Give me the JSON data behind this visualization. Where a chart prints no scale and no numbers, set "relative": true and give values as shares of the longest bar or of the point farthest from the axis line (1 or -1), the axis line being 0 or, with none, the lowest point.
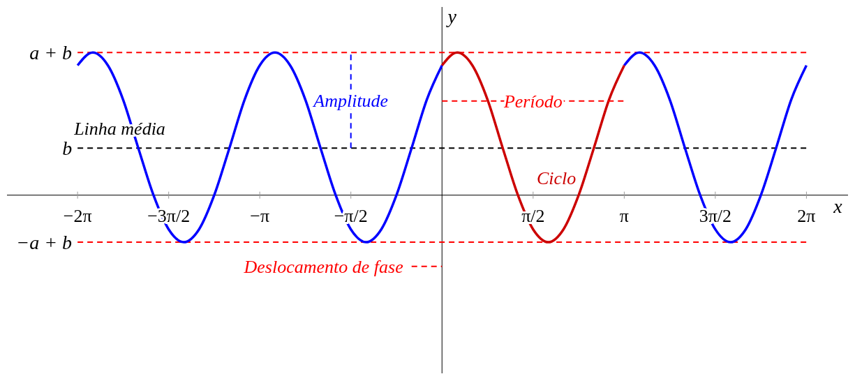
{
  "chart_data": {
    "type": "line",
    "relative": true,
    "xlabel": "x",
    "ylabel": "y",
    "xlim": [
      -7.5,
      7.0
    ],
    "xticks": [
      {
        "value": -6.283,
        "label": "−2π"
      },
      {
        "value": -4.712,
        "label": "−3π/2"
      },
      {
        "value": -3.142,
        "label": "−π"
      },
      {
        "value": -1.571,
        "label": "−π/2"
      },
      {
        "value": 1.571,
        "label": "π/2"
      },
      {
        "value": 3.142,
        "label": "π"
      },
      {
        "value": 4.712,
        "label": "3π/2"
      },
      {
        "value": 6.283,
        "label": "2π"
      }
    ],
    "series": [
      {
        "color": "#0000ff",
        "x": [
          -6.283,
          -6.021,
          -5.76,
          -5.498,
          -5.236,
          -4.974,
          -4.712,
          -4.451,
          -4.189,
          -3.927,
          -3.665,
          -3.403,
          -3.142,
          -2.88,
          -2.618,
          -2.356,
          -2.094,
          -1.833,
          -1.571,
          -1.309,
          -1.047,
          -0.785,
          -0.524,
          -0.262,
          0,
          0.262,
          0.524,
          0.785,
          1.047,
          1.309,
          1.571,
          1.833,
          2.094,
          2.356,
          2.618,
          2.88,
          3.142,
          3.403,
          3.665,
          3.927,
          4.189,
          4.451,
          4.712,
          4.974,
          5.236,
          5.498,
          5.76,
          6.021,
          6.283
        ],
        "values": [
          0.91,
          1,
          0.91,
          0.67,
          0.33,
          0,
          -0.24,
          -0.33,
          -0.24,
          0,
          0.33,
          0.67,
          0.91,
          1,
          0.91,
          0.67,
          0.33,
          0,
          -0.24,
          -0.33,
          -0.24,
          0,
          0.33,
          0.67,
          0.91,
          null,
          null,
          null,
          null,
          null,
          null,
          null,
          null,
          null,
          null,
          null,
          0.91,
          1,
          0.91,
          0.67,
          0.33,
          0,
          -0.24,
          -0.33,
          -0.24,
          0,
          0.33,
          0.67,
          0.91
        ]
      },
      {
        "name": "Ciclo",
        "color": "#cc0000",
        "x": [
          0,
          0.262,
          0.524,
          0.785,
          1.047,
          1.309,
          1.571,
          1.833,
          2.094,
          2.356,
          2.618,
          2.88,
          3.142
        ],
        "values": [
          0.91,
          1,
          0.91,
          0.67,
          0.33,
          0,
          -0.24,
          -0.33,
          -0.24,
          0,
          0.33,
          0.67,
          0.91
        ]
      },
      {
        "name": "Amplitude",
        "color": "#0000ff",
        "line_style": "dashed",
        "x": [
          -1.571,
          -1.571
        ],
        "values": [
          0.33,
          1
        ]
      },
      {
        "name": "Período",
        "color": "#ff0000",
        "line_style": "dashed",
        "x": [
          0,
          3.142
        ],
        "values": [
          0.66,
          0.66
        ]
      },
      {
        "name": "Deslocamento de fase",
        "color": "#ff0000",
        "line_style": "dashed",
        "x": [
          -0.524,
          0
        ],
        "values": [
          -0.5,
          -0.5
        ]
      }
    ],
    "ref_lines": [
      {
        "axis": "y",
        "value": 1,
        "label": "a + b",
        "color": "#ff0000",
        "line_style": "dashed"
      },
      {
        "axis": "y",
        "value": 0.33,
        "label": "b",
        "color": "#000000",
        "line_style": "dashed"
      },
      {
        "axis": "y",
        "value": -0.33,
        "label": "−a + b",
        "color": "#ff0000",
        "line_style": "dashed"
      }
    ],
    "annotations": [
      "Linha média"
    ],
    "marker": "none"
  }
}
